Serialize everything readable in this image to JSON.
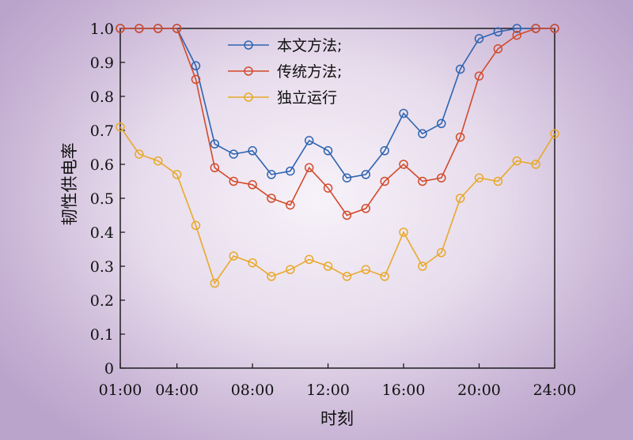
{
  "chart_data": {
    "type": "line",
    "xlabel": "时刻",
    "ylabel": "韧性供电率",
    "xlim": [
      1,
      24
    ],
    "ylim": [
      0,
      1.0
    ],
    "x_ticks": [
      {
        "value": 1,
        "label": "01:00"
      },
      {
        "value": 4,
        "label": "04:00"
      },
      {
        "value": 8,
        "label": "08:00"
      },
      {
        "value": 12,
        "label": "12:00"
      },
      {
        "value": 16,
        "label": "16:00"
      },
      {
        "value": 20,
        "label": "20:00"
      },
      {
        "value": 24,
        "label": "24:00"
      }
    ],
    "y_ticks": [
      {
        "value": 0,
        "label": "0"
      },
      {
        "value": 0.1,
        "label": "0.1"
      },
      {
        "value": 0.2,
        "label": "0.2"
      },
      {
        "value": 0.3,
        "label": "0.3"
      },
      {
        "value": 0.4,
        "label": "0.4"
      },
      {
        "value": 0.5,
        "label": "0.5"
      },
      {
        "value": 0.6,
        "label": "0.6"
      },
      {
        "value": 0.7,
        "label": "0.7"
      },
      {
        "value": 0.8,
        "label": "0.8"
      },
      {
        "value": 0.9,
        "label": "0.9"
      },
      {
        "value": 1.0,
        "label": "1.0"
      }
    ],
    "x": [
      1,
      2,
      3,
      4,
      5,
      6,
      7,
      8,
      9,
      10,
      11,
      12,
      13,
      14,
      15,
      16,
      17,
      18,
      19,
      20,
      21,
      22,
      23,
      24
    ],
    "grid": false,
    "legend_position": "top-center",
    "series": [
      {
        "name": "本文方法;",
        "color": "#2e64b0",
        "values": [
          1.0,
          1.0,
          1.0,
          1.0,
          0.89,
          0.66,
          0.63,
          0.64,
          0.57,
          0.58,
          0.67,
          0.64,
          0.56,
          0.57,
          0.64,
          0.75,
          0.69,
          0.72,
          0.88,
          0.97,
          0.99,
          1.0,
          1.0,
          1.0
        ]
      },
      {
        "name": "传统方法;",
        "color": "#d24a2a",
        "values": [
          1.0,
          1.0,
          1.0,
          1.0,
          0.85,
          0.59,
          0.55,
          0.54,
          0.5,
          0.48,
          0.59,
          0.53,
          0.45,
          0.47,
          0.55,
          0.6,
          0.55,
          0.56,
          0.68,
          0.86,
          0.94,
          0.98,
          1.0,
          1.0
        ]
      },
      {
        "name": "独立运行",
        "color": "#e8a92a",
        "values": [
          0.71,
          0.63,
          0.61,
          0.57,
          0.42,
          0.25,
          0.33,
          0.31,
          0.27,
          0.29,
          0.32,
          0.3,
          0.27,
          0.29,
          0.27,
          0.4,
          0.3,
          0.34,
          0.5,
          0.56,
          0.55,
          0.61,
          0.6,
          0.69
        ]
      }
    ]
  }
}
